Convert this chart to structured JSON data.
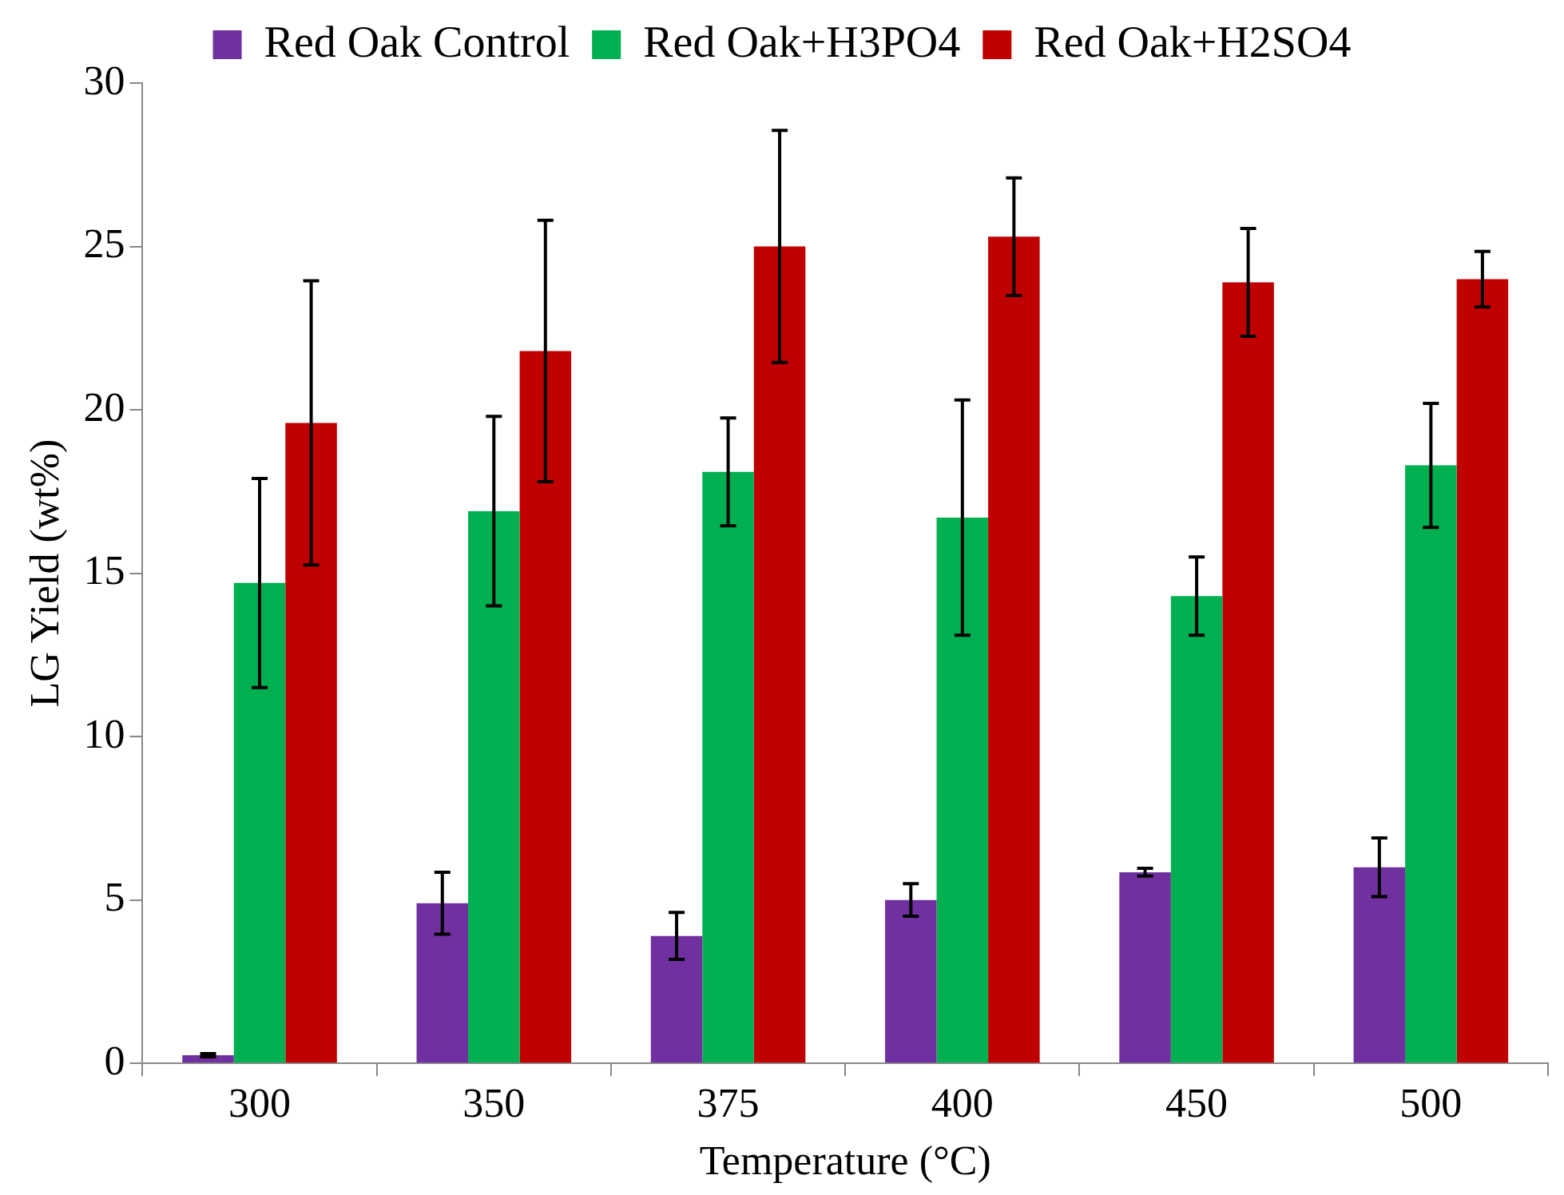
{
  "chart_data": {
    "type": "bar",
    "xlabel": "Temperature (°C)",
    "ylabel": "LG Yield (wt%)",
    "categories": [
      "300",
      "350",
      "375",
      "400",
      "450",
      "500"
    ],
    "series": [
      {
        "name": "Red Oak Control",
        "color": "#7030a0",
        "values": [
          0.25,
          4.9,
          3.9,
          5.0,
          5.85,
          6.0
        ],
        "errors": [
          0.05,
          0.95,
          0.72,
          0.5,
          0.12,
          0.9
        ]
      },
      {
        "name": "Red Oak+H3PO4",
        "color": "#00b050",
        "values": [
          14.7,
          16.9,
          18.1,
          16.7,
          14.3,
          18.3
        ],
        "errors": [
          3.2,
          2.9,
          1.65,
          3.6,
          1.2,
          1.9
        ]
      },
      {
        "name": "Red Oak+H2SO4",
        "color": "#c00000",
        "values": [
          19.6,
          21.8,
          25.0,
          25.3,
          23.9,
          24.0
        ],
        "errors": [
          4.35,
          4.0,
          3.55,
          1.8,
          1.65,
          0.85
        ]
      }
    ],
    "ylim": [
      0,
      30
    ],
    "yticks": [
      0,
      5,
      10,
      15,
      20,
      25,
      30
    ],
    "legend": "top"
  }
}
